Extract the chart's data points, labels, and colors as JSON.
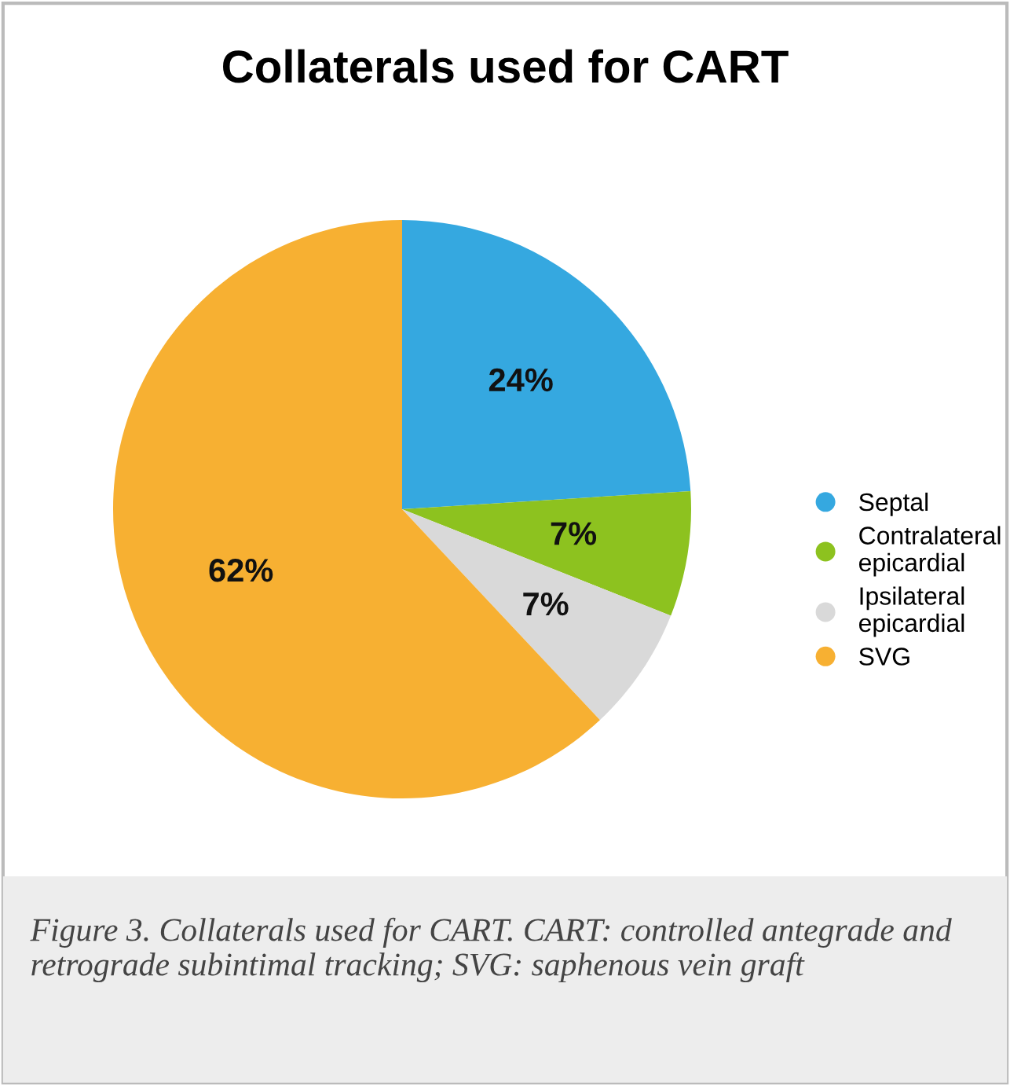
{
  "chart_data": {
    "type": "pie",
    "title": "Collaterals used for CART",
    "categories": [
      "Septal",
      "Contralateral\nepicardial",
      "Ipsilateral\nepicardial",
      "SVG"
    ],
    "values": [
      24,
      7,
      7,
      62
    ],
    "value_labels": [
      "24%",
      "7%",
      "7%",
      "62%"
    ],
    "colors": [
      "#35a8e0",
      "#8dc21f",
      "#d9d9d9",
      "#f7b032"
    ],
    "legend": "right",
    "annotations": [
      "Figure 3. Collaterals used for CART. CART: controlled antegrade and retrograde subintimal tracking; SVG: saphenous vein graft"
    ]
  }
}
